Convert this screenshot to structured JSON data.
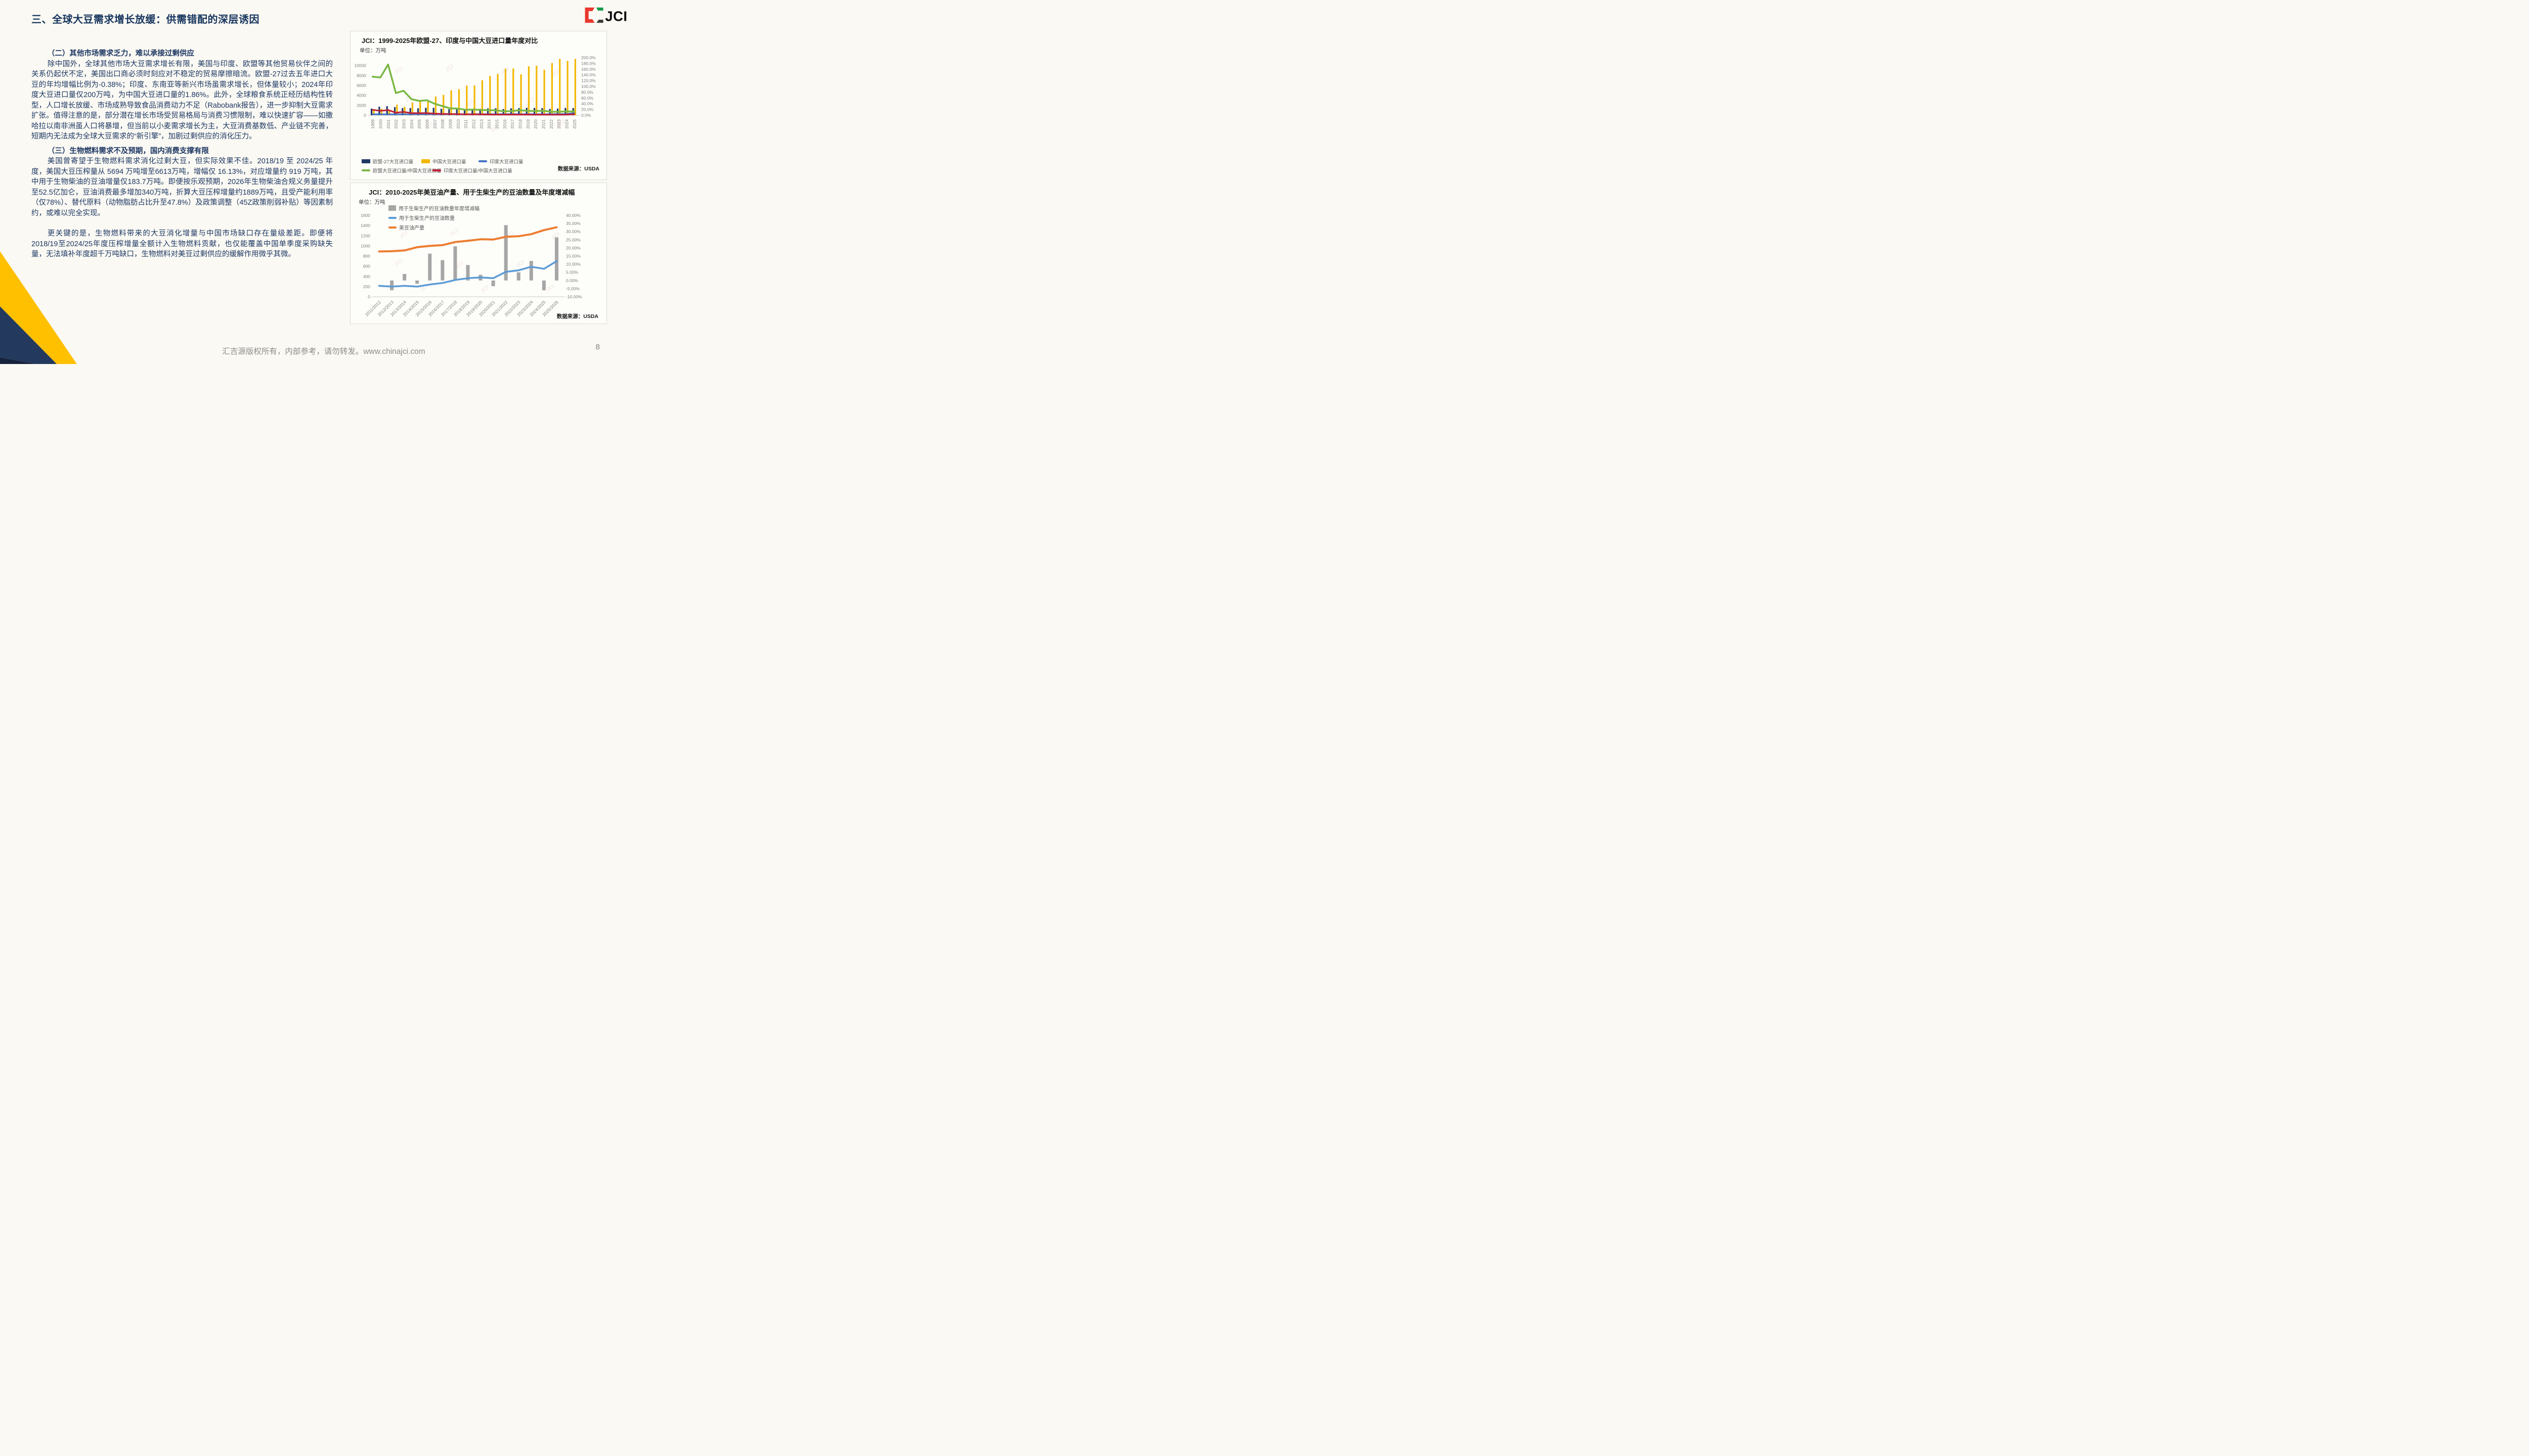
{
  "slide": {
    "title": "三、全球大豆需求增长放缓：供需错配的深层诱因",
    "logo_text": "JCI",
    "footer": "汇吉源版权所有，内部参考，请勿转发。www.chinajci.com",
    "page_number": "8"
  },
  "body": {
    "section2_heading": "（二）其他市场需求乏力，难以承接过剩供应",
    "section2_text": "除中国外，全球其他市场大豆需求增长有限，美国与印度、欧盟等其他贸易伙伴之间的关系仍起伏不定，美国出口商必须时刻应对不稳定的贸易摩擦暗流。欧盟-27过去五年进口大豆的年均增幅比例为-0.38%；印度、东南亚等新兴市场虽需求增长，但体量较小；2024年印度大豆进口量仅200万吨，为中国大豆进口量的1.86%。此外，全球粮食系统正经历结构性转型，人口增长放缓、市场成熟导致食品消费动力不足（Rabobank报告），进一步抑制大豆需求扩张。值得注意的是，部分潜在增长市场受贸易格局与消费习惯限制，难以快速扩容——如撒哈拉以南非洲虽人口将暴增，但当前以小麦需求增长为主，大豆消费基数低、产业链不完善，短期内无法成为全球大豆需求的“新引擎”，加剧过剩供应的消化压力。",
    "section3_heading": "（三）生物燃料需求不及预期，国内消费支撑有限",
    "section3_text": "美国曾寄望于生物燃料需求消化过剩大豆，但实际效果不佳。2018/19 至 2024/25 年度，美国大豆压榨量从 5694 万吨增至6613万吨，增幅仅 16.13%，对应增量约 919 万吨，其中用于生物柴油的豆油增量仅183.7万吨。即便按乐观预期，2026年生物柴油合规义务量提升至52.5亿加仑，豆油消费最多增加340万吨，折算大豆压榨增量约1889万吨，且受产能利用率（仅78%）、替代原料（动物脂肪占比升至47.8%）及政策调整（45Z政策削弱补贴）等因素制约，或难以完全实现。",
    "paragraph3": "更关键的是，生物燃料带来的大豆消化增量与中国市场缺口存在量级差距。即便将2018/19至2024/25年度压榨增量全额计入生物燃料贡献，也仅能覆盖中国单季度采购缺失量，无法填补年度超千万吨缺口，生物燃料对美豆过剩供应的缓解作用微乎其微。"
  },
  "chart_data": [
    {
      "type": "bar",
      "title": "JCI：1999-2025年欧盟-27、印度与中国大豆进口量年度对比",
      "unit_label": "单位：万吨",
      "source": "数据来源：USDA",
      "categories": [
        "1999",
        "2000",
        "2001",
        "2002",
        "2003",
        "2004",
        "2005",
        "2006",
        "2007",
        "2008",
        "2009",
        "2010",
        "2011",
        "2012",
        "2013",
        "2014",
        "2015",
        "2016",
        "2017",
        "2018",
        "2019",
        "2020",
        "2021",
        "2022",
        "2023",
        "2024",
        "2025"
      ],
      "left_axis": {
        "min": 0,
        "max": 11600,
        "labelMax": 10000,
        "step": 2000,
        "fmt": "i",
        "ylabel": "万吨"
      },
      "right_axis": {
        "min": 0,
        "max": 200,
        "step": 20,
        "fmt": "p1"
      },
      "legend_position": "bottom",
      "grid": false,
      "series": [
        {
          "name": "欧盟-27大豆进口量",
          "type": "bar",
          "axis": "left",
          "color": "#1F3864",
          "values": [
            1340,
            1730,
            1830,
            1640,
            1450,
            1450,
            1400,
            1500,
            1500,
            1300,
            1220,
            1220,
            1150,
            1220,
            1300,
            1380,
            1410,
            1260,
            1390,
            1450,
            1500,
            1480,
            1450,
            1280,
            1330,
            1480,
            1450
          ]
        },
        {
          "name": "中国大豆进口量",
          "type": "bar",
          "axis": "left",
          "color": "#F3B700",
          "values": [
            1000,
            1320,
            1040,
            2140,
            1700,
            2580,
            2820,
            2870,
            3780,
            4110,
            5030,
            5250,
            5970,
            5990,
            7040,
            7900,
            8320,
            9350,
            9410,
            8250,
            9850,
            9980,
            9160,
            10500,
            11350,
            10950,
            11350
          ]
        },
        {
          "name": "印度大豆进口量",
          "type": "line",
          "axis": "left",
          "color": "#4472C4",
          "values": [
            190,
            200,
            190,
            190,
            200,
            200,
            210,
            210,
            210,
            200,
            220,
            210,
            200,
            210,
            210,
            210,
            200,
            230,
            230,
            200,
            230,
            200,
            190,
            210,
            220,
            250,
            430
          ]
        },
        {
          "name": "欧盟大豆进口量/中国大豆进口量",
          "type": "line",
          "axis": "right",
          "color": "#79B843",
          "values": [
            134,
            131,
            176,
            77,
            85,
            56,
            50,
            52,
            40,
            32,
            24,
            23,
            19,
            20,
            18.5,
            17.5,
            17,
            13.5,
            14.8,
            17.6,
            15.2,
            14.8,
            15.8,
            12.2,
            11.7,
            13.5,
            12.8
          ]
        },
        {
          "name": "印度大豆进口量/中国大豆进口量",
          "type": "line",
          "axis": "right",
          "color": "#C11E33",
          "values": [
            19,
            15.2,
            18.3,
            8.9,
            11.8,
            7.8,
            7.4,
            7.3,
            5.6,
            4.9,
            4.4,
            4,
            3.4,
            3.5,
            3,
            2.7,
            2.4,
            2.5,
            2.4,
            2.4,
            2.3,
            2,
            2.1,
            2,
            1.9,
            2.3,
            3.8
          ]
        }
      ]
    },
    {
      "type": "bar",
      "title": "JCI：2010-2025年美豆油产量、用于生柴生产的豆油数量及年度增减幅",
      "unit_label": "单位：万吨",
      "source": "数据来源：USDA",
      "categories": [
        "2011/2012",
        "2012/2013",
        "2013/2014",
        "2014/2015",
        "2015/2016",
        "2016/2017",
        "2017/2018",
        "2018/2019",
        "2019/2020",
        "2020/2021",
        "2021/2022",
        "2022/2023",
        "2023/2024",
        "2024/2025",
        "2025/2026"
      ],
      "left_axis": {
        "min": 0,
        "max": 1600,
        "labelMax": 1600,
        "step": 200,
        "fmt": "i",
        "ylabel": "万吨"
      },
      "right_axis": {
        "min": -10,
        "max": 40,
        "step": 5,
        "fmt": "p2"
      },
      "legend_position": "top-left overlay",
      "grid": false,
      "series": [
        {
          "name": "用于生柴生产的豆油数量年度增减幅",
          "type": "bar",
          "axis": "right",
          "color": "#A6A6A6",
          "values": [
            0,
            -6,
            4,
            -2,
            16.5,
            12.5,
            21,
            9.5,
            3.5,
            -3.5,
            34,
            5,
            12,
            -6,
            26.5
          ]
        },
        {
          "name": "用于生柴生产的豆油数量",
          "type": "line",
          "axis": "left",
          "color": "#5B9BD5",
          "values": [
            215,
            200,
            215,
            200,
            240,
            270,
            330,
            365,
            380,
            365,
            490,
            520,
            590,
            550,
            700
          ]
        },
        {
          "name": "美豆油产量",
          "type": "line",
          "axis": "left",
          "color": "#ED7D31",
          "values": [
            890,
            895,
            910,
            975,
            1000,
            1015,
            1075,
            1100,
            1130,
            1125,
            1180,
            1190,
            1230,
            1310,
            1365
          ]
        }
      ]
    }
  ],
  "colors": {
    "title_navy": "#17355E",
    "body_navy": "#1F3864",
    "accent_yellow": "#FFC000",
    "corner_navy": "#24395E",
    "corner_dark": "#16233C",
    "logo_red": "#E8382F",
    "logo_green": "#169B4E",
    "logo_dark": "#3E3A39"
  }
}
